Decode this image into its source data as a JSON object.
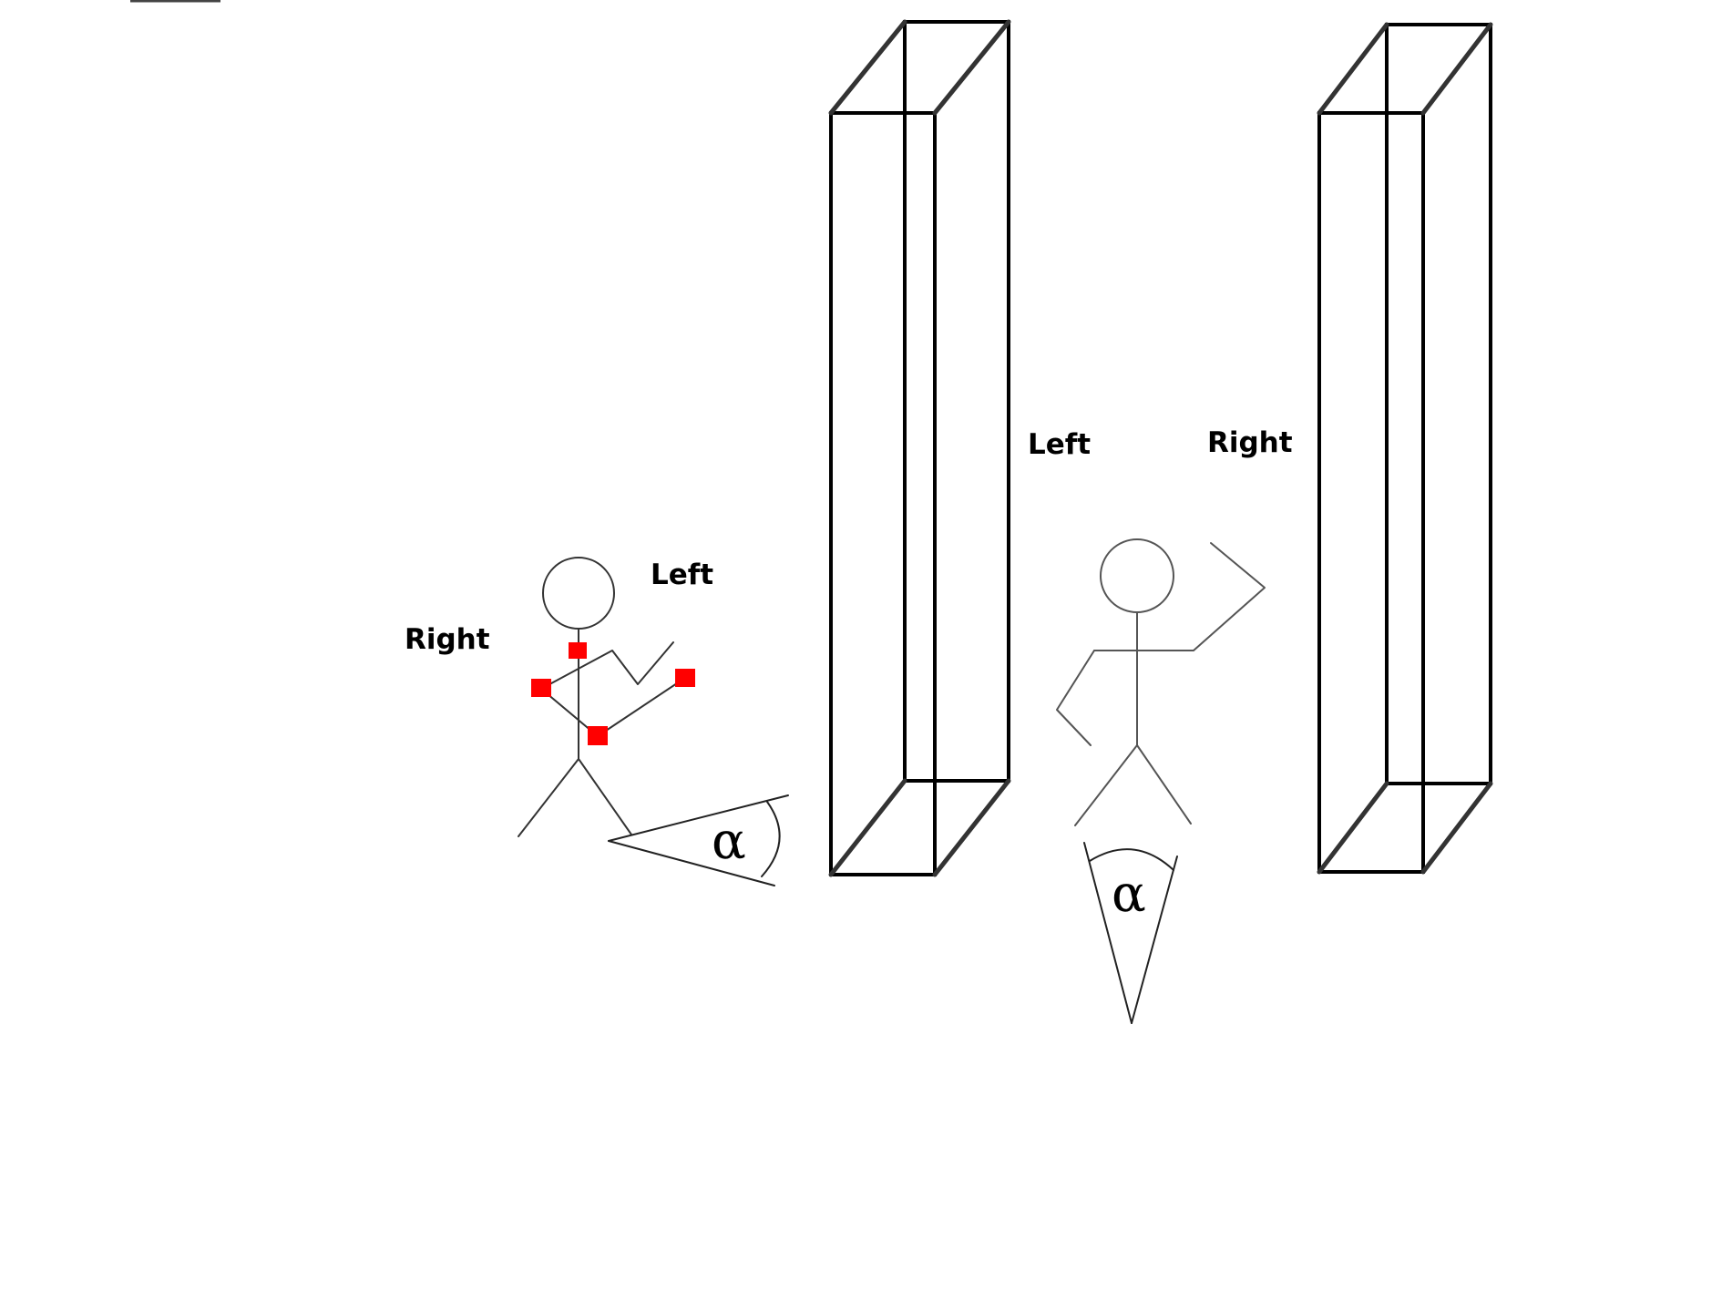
{
  "labels": {
    "figure1_right": "Right",
    "figure1_left": "Left",
    "pillar_left": "Left",
    "pillar_right": "Right"
  },
  "angle_symbol": "α",
  "colors": {
    "outline": "#000000",
    "marker": "#ff0000"
  }
}
